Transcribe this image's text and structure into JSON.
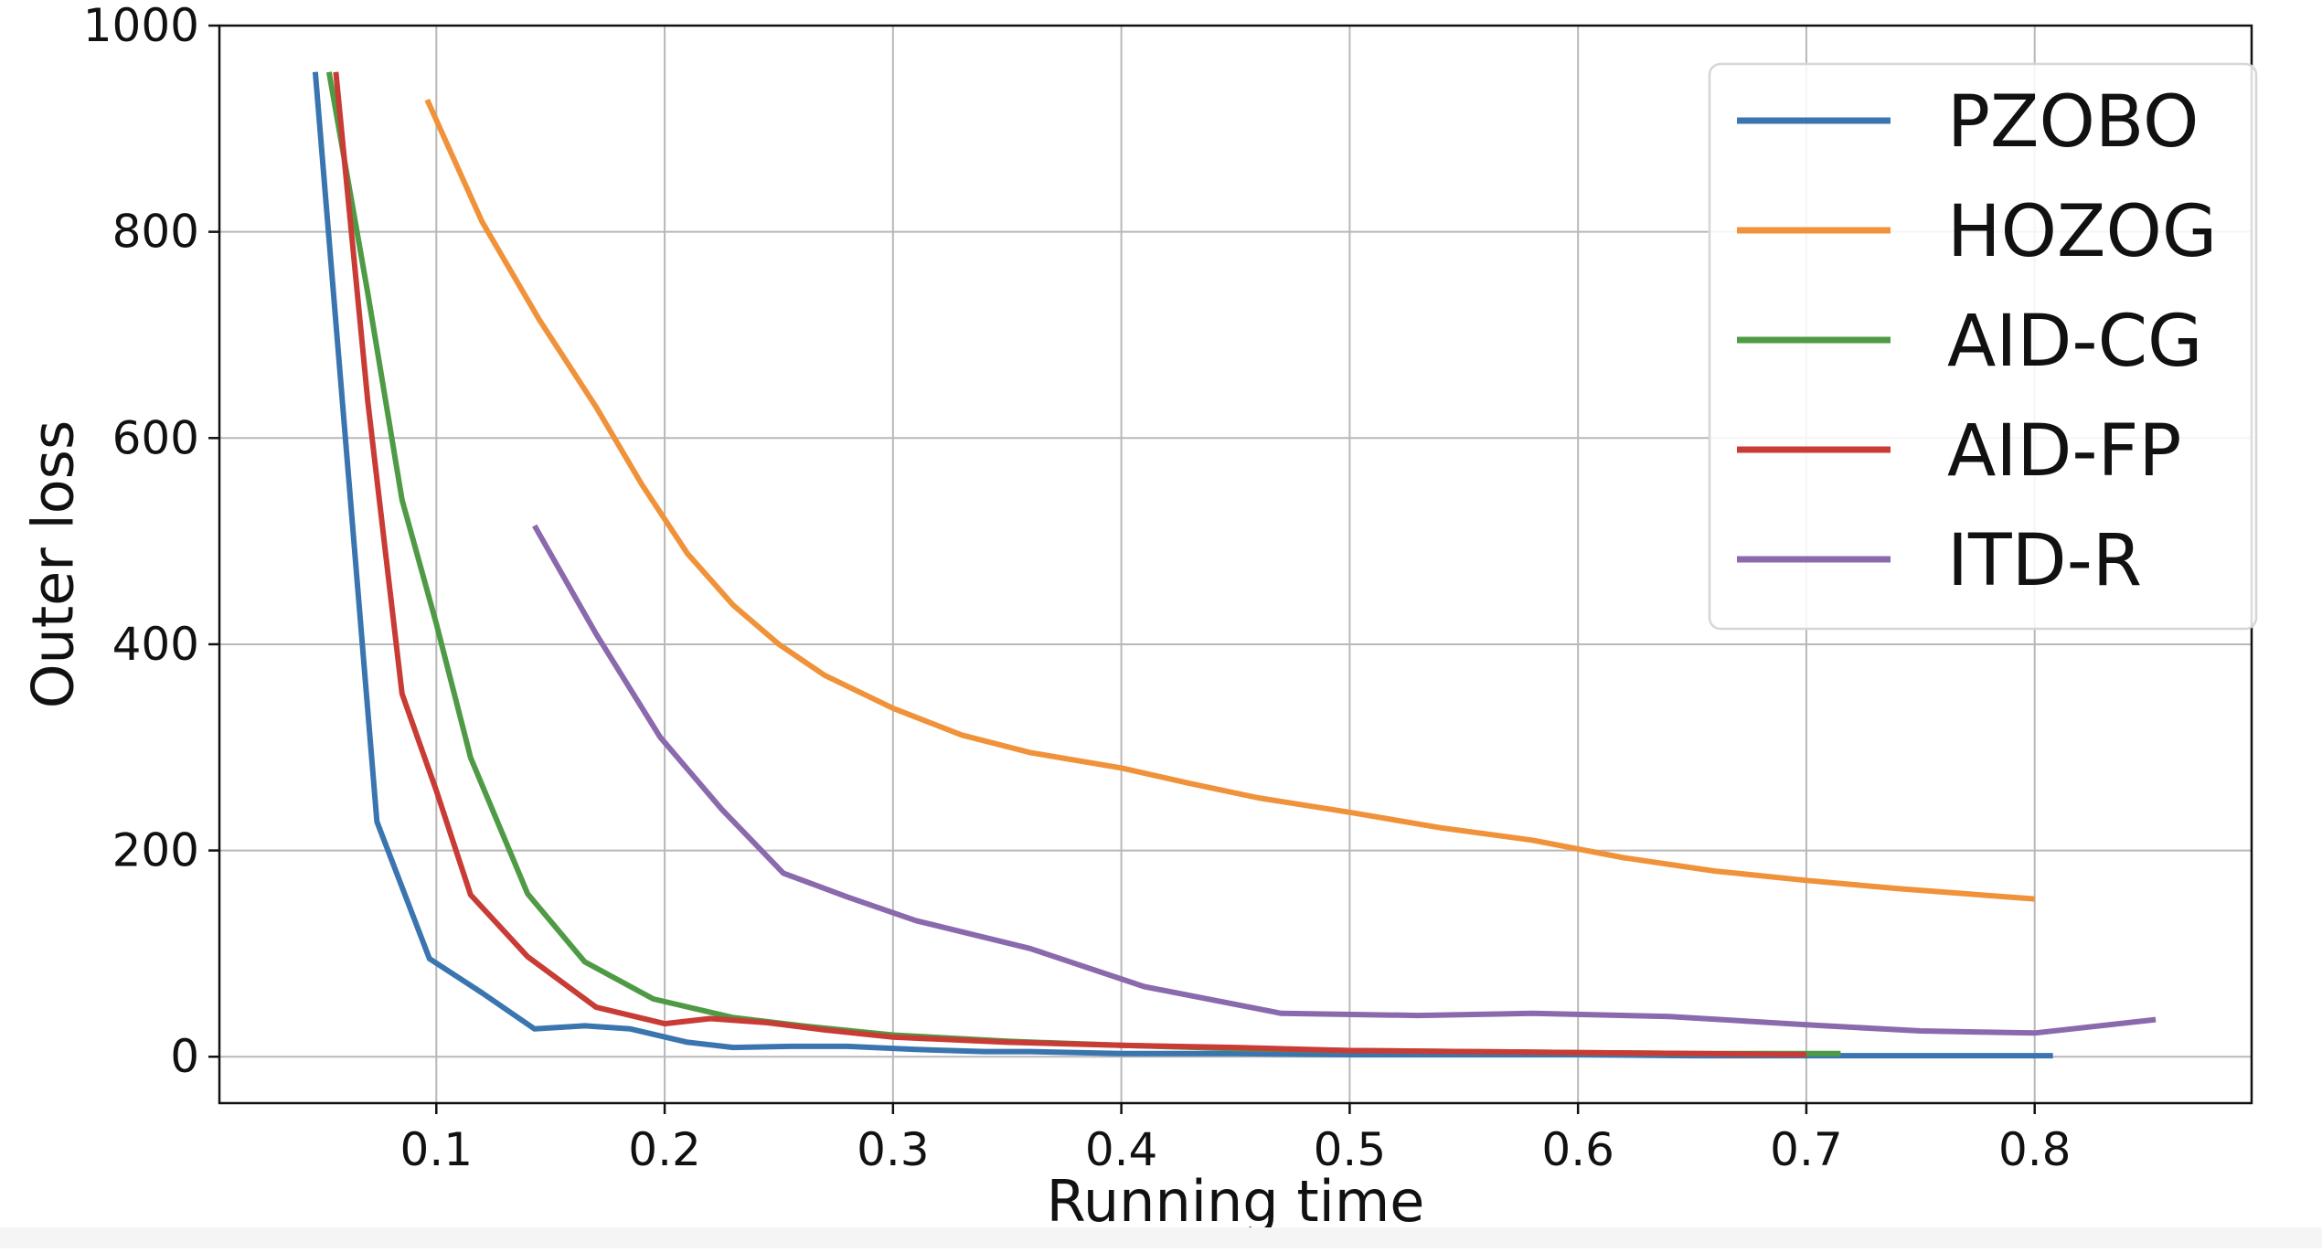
{
  "chart_data": {
    "type": "line",
    "title": "",
    "xlabel": "Running time",
    "ylabel": "Outer loss",
    "xlim": [
      0.005,
      0.895
    ],
    "ylim": [
      -45,
      1000
    ],
    "xticks": [
      0.1,
      0.2,
      0.3,
      0.4,
      0.5,
      0.6,
      0.7,
      0.8
    ],
    "xtick_labels": [
      "0.1",
      "0.2",
      "0.3",
      "0.4",
      "0.5",
      "0.6",
      "0.7",
      "0.8"
    ],
    "yticks": [
      0,
      200,
      400,
      600,
      800,
      1000
    ],
    "ytick_labels": [
      "0",
      "200",
      "400",
      "600",
      "800",
      "1000"
    ],
    "grid": true,
    "legend_position": "top-right",
    "series": [
      {
        "name": "PZOBO",
        "color": "#3a75b0",
        "x": [
          0.047,
          0.074,
          0.097,
          0.12,
          0.143,
          0.165,
          0.185,
          0.21,
          0.23,
          0.255,
          0.28,
          0.31,
          0.34,
          0.36,
          0.4,
          0.45,
          0.5,
          0.55,
          0.6,
          0.65,
          0.7,
          0.75,
          0.808
        ],
        "y": [
          955,
          228,
          95,
          62,
          27,
          30,
          27,
          14,
          9,
          10,
          10,
          7,
          5,
          5,
          3,
          3,
          2,
          2,
          2,
          1,
          1,
          1,
          1
        ]
      },
      {
        "name": "HOZOG",
        "color": "#f0923a",
        "x": [
          0.096,
          0.12,
          0.145,
          0.17,
          0.19,
          0.21,
          0.23,
          0.25,
          0.27,
          0.3,
          0.33,
          0.36,
          0.4,
          0.43,
          0.46,
          0.5,
          0.54,
          0.58,
          0.62,
          0.66,
          0.7,
          0.74,
          0.8
        ],
        "y": [
          928,
          810,
          715,
          630,
          555,
          488,
          438,
          400,
          370,
          338,
          312,
          295,
          280,
          265,
          251,
          237,
          222,
          210,
          193,
          180,
          171,
          163,
          153
        ]
      },
      {
        "name": "AID-CG",
        "color": "#4f9a45",
        "x": [
          0.053,
          0.07,
          0.085,
          0.1,
          0.115,
          0.14,
          0.165,
          0.195,
          0.23,
          0.26,
          0.3,
          0.35,
          0.4,
          0.45,
          0.5,
          0.55,
          0.6,
          0.65,
          0.7,
          0.715
        ],
        "y": [
          955,
          740,
          540,
          420,
          290,
          158,
          92,
          56,
          38,
          30,
          21,
          15,
          11,
          8,
          6,
          5,
          4,
          3,
          3,
          3
        ]
      },
      {
        "name": "AID-FP",
        "color": "#c83c35",
        "x": [
          0.056,
          0.07,
          0.085,
          0.1,
          0.115,
          0.14,
          0.17,
          0.2,
          0.22,
          0.245,
          0.27,
          0.3,
          0.35,
          0.4,
          0.45,
          0.5,
          0.55,
          0.6,
          0.65,
          0.7
        ],
        "y": [
          955,
          635,
          352,
          258,
          157,
          97,
          48,
          32,
          37,
          33,
          26,
          19,
          14,
          11,
          9,
          6,
          5,
          4,
          3,
          2
        ]
      },
      {
        "name": "ITD-R",
        "color": "#8a69ad",
        "x": [
          0.143,
          0.17,
          0.198,
          0.225,
          0.252,
          0.28,
          0.31,
          0.36,
          0.41,
          0.47,
          0.53,
          0.58,
          0.64,
          0.7,
          0.75,
          0.8,
          0.853
        ],
        "y": [
          515,
          410,
          310,
          240,
          178,
          155,
          132,
          105,
          68,
          42,
          40,
          42,
          39,
          31,
          25,
          23,
          36
        ]
      }
    ]
  }
}
